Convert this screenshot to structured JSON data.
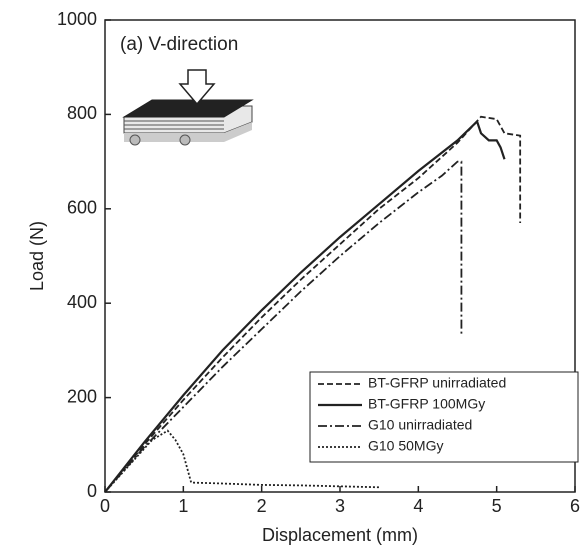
{
  "chart_data": {
    "type": "line",
    "annotation": "(a) V-direction",
    "xlabel": "Displacement (mm)",
    "ylabel": "Load (N)",
    "xlim": [
      0,
      6
    ],
    "ylim": [
      0,
      1000
    ],
    "xticks": [
      0,
      1,
      2,
      3,
      4,
      5,
      6
    ],
    "yticks": [
      0,
      200,
      400,
      600,
      800,
      1000
    ],
    "legend": "lower right",
    "series": [
      {
        "name": "BT-GFRP unirradiated",
        "color": "#222222",
        "style": "dashed",
        "x": [
          0,
          0.5,
          1,
          1.5,
          2,
          2.5,
          3,
          3.5,
          4,
          4.5,
          4.8,
          5.0,
          5.1,
          5.3,
          5.3
        ],
        "values": [
          0,
          100,
          195,
          285,
          370,
          450,
          525,
          600,
          665,
          740,
          795,
          790,
          760,
          755,
          570
        ]
      },
      {
        "name": "BT-GFRP 100MGy",
        "color": "#222222",
        "style": "solid",
        "x": [
          0,
          0.5,
          1,
          1.5,
          2,
          2.5,
          3,
          3.5,
          4,
          4.5,
          4.75,
          4.8,
          4.9,
          5.0,
          5.05,
          5.1
        ],
        "values": [
          0,
          105,
          205,
          300,
          385,
          465,
          540,
          610,
          680,
          745,
          785,
          760,
          745,
          745,
          730,
          705
        ]
      },
      {
        "name": "G10 unirradiated",
        "color": "#222222",
        "style": "dashdot",
        "x": [
          0,
          0.5,
          1,
          1.5,
          2,
          2.5,
          3,
          3.5,
          4,
          4.3,
          4.5,
          4.55,
          4.55
        ],
        "values": [
          0,
          95,
          180,
          265,
          345,
          425,
          500,
          570,
          635,
          670,
          700,
          700,
          330
        ]
      },
      {
        "name": "G10 50MGy",
        "color": "#222222",
        "style": "dotted",
        "x": [
          0,
          0.3,
          0.6,
          0.8,
          0.9,
          1.0,
          1.1,
          1.5,
          2,
          2.5,
          3,
          3.5
        ],
        "values": [
          0,
          55,
          110,
          130,
          110,
          80,
          20,
          18,
          15,
          14,
          12,
          10
        ]
      }
    ]
  }
}
